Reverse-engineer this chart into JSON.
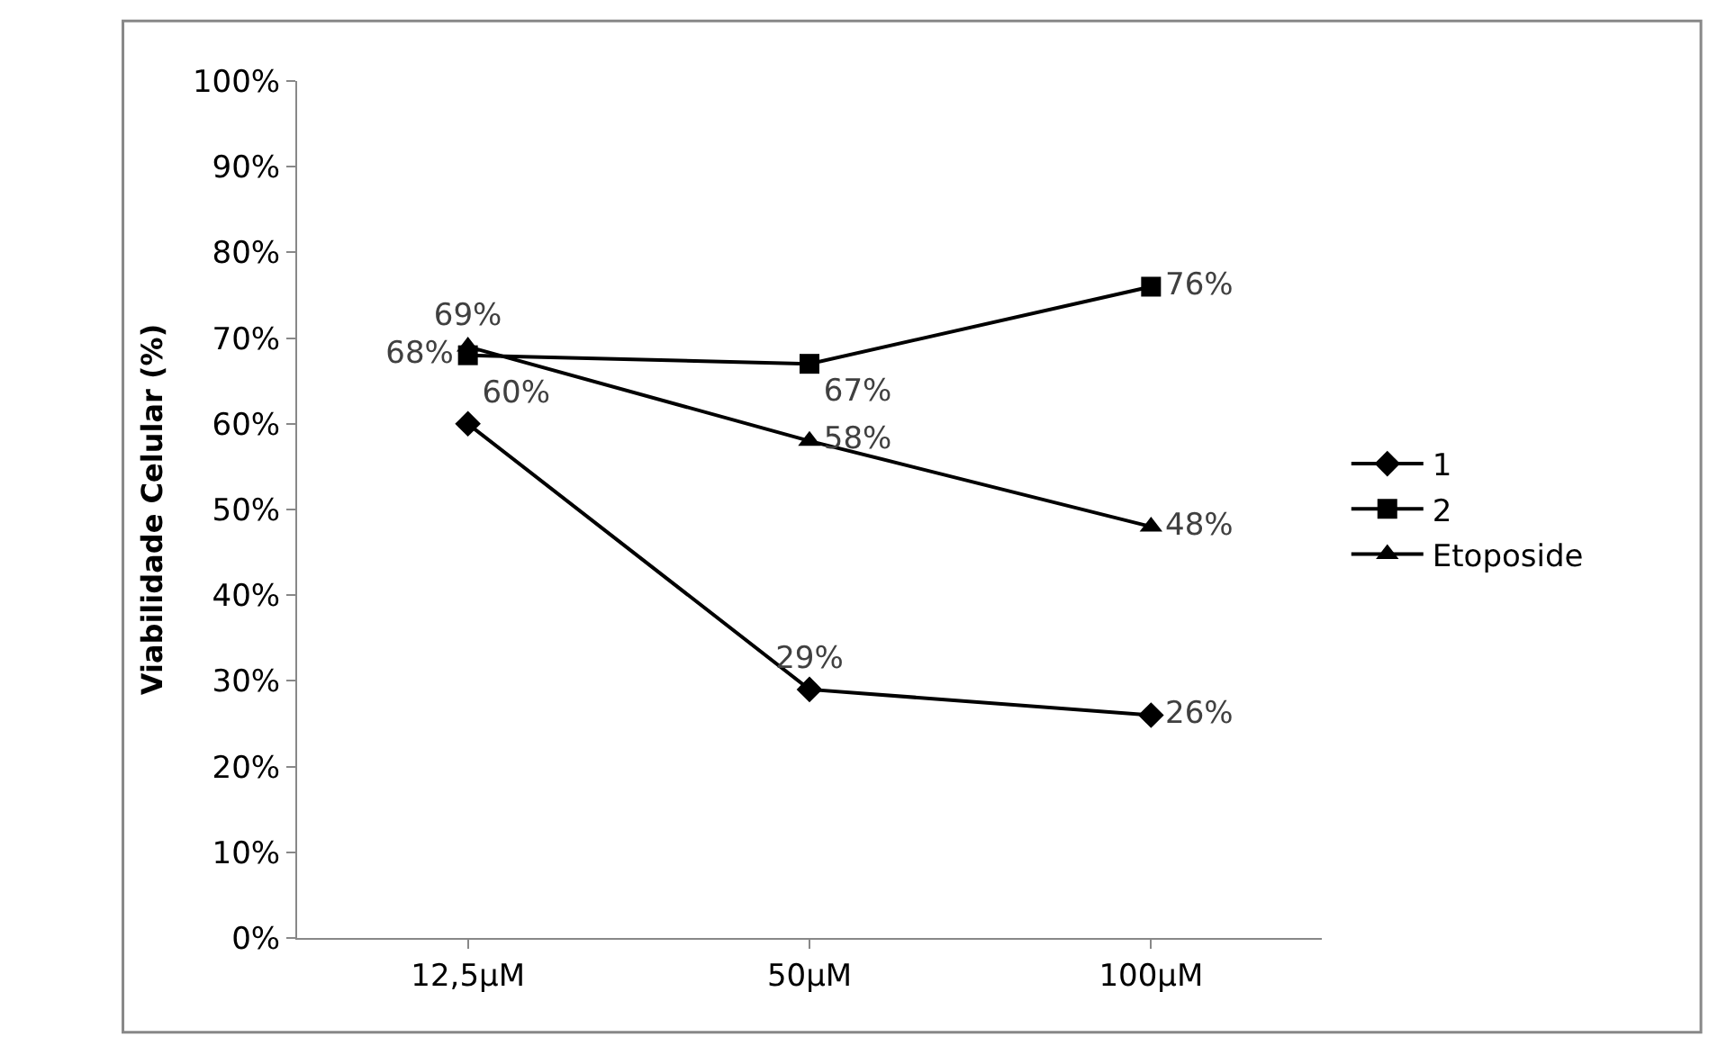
{
  "chart_data": {
    "type": "line",
    "ylabel": "Viabilidade Celular (%)",
    "categories": [
      "12,5µM",
      "50µM",
      "100µM"
    ],
    "series": [
      {
        "name": "1",
        "color": "#000000",
        "marker": "diamond",
        "values": [
          60,
          29,
          26
        ],
        "value_labels": [
          "60%",
          "29%",
          "26%"
        ]
      },
      {
        "name": "2",
        "color": "#000000",
        "marker": "square",
        "values": [
          68,
          67,
          76
        ],
        "value_labels": [
          "68%",
          "67%",
          "76%"
        ]
      },
      {
        "name": "Etoposide",
        "color": "#000000",
        "marker": "triangle",
        "values": [
          69,
          58,
          48
        ],
        "value_labels": [
          "69%",
          "58%",
          "48%"
        ]
      }
    ],
    "ylim": [
      0,
      100
    ],
    "yticks": [
      {
        "value": 0,
        "label": "0%"
      },
      {
        "value": 10,
        "label": "10%"
      },
      {
        "value": 20,
        "label": "20%"
      },
      {
        "value": 30,
        "label": "30%"
      },
      {
        "value": 40,
        "label": "40%"
      },
      {
        "value": 50,
        "label": "50%"
      },
      {
        "value": 60,
        "label": "60%"
      },
      {
        "value": 70,
        "label": "70%"
      },
      {
        "value": 80,
        "label": "80%"
      },
      {
        "value": 90,
        "label": "90%"
      },
      {
        "value": 100,
        "label": "100%"
      }
    ],
    "grid": false,
    "legend": "right",
    "line_style": "solid"
  }
}
